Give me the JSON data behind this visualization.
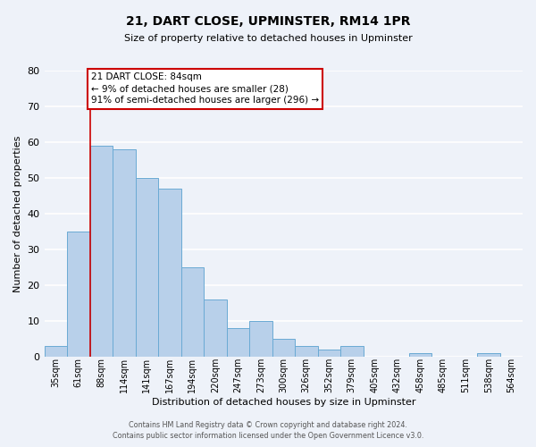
{
  "title": "21, DART CLOSE, UPMINSTER, RM14 1PR",
  "subtitle": "Size of property relative to detached houses in Upminster",
  "xlabel": "Distribution of detached houses by size in Upminster",
  "ylabel": "Number of detached properties",
  "bar_labels": [
    "35sqm",
    "61sqm",
    "88sqm",
    "114sqm",
    "141sqm",
    "167sqm",
    "194sqm",
    "220sqm",
    "247sqm",
    "273sqm",
    "300sqm",
    "326sqm",
    "352sqm",
    "379sqm",
    "405sqm",
    "432sqm",
    "458sqm",
    "485sqm",
    "511sqm",
    "538sqm",
    "564sqm"
  ],
  "bar_values": [
    3,
    35,
    59,
    58,
    50,
    47,
    25,
    16,
    8,
    10,
    5,
    3,
    2,
    3,
    0,
    0,
    1,
    0,
    0,
    1,
    0
  ],
  "bar_color": "#b8d0ea",
  "bar_edge_color": "#6aaad4",
  "bar_edge_width": 0.7,
  "ylim": [
    0,
    80
  ],
  "yticks": [
    0,
    10,
    20,
    30,
    40,
    50,
    60,
    70,
    80
  ],
  "red_line_index": 2,
  "red_line_color": "#cc0000",
  "annotation_title": "21 DART CLOSE: 84sqm",
  "annotation_line1": "← 9% of detached houses are smaller (28)",
  "annotation_line2": "91% of semi-detached houses are larger (296) →",
  "annotation_box_color": "#ffffff",
  "annotation_box_edge": "#cc0000",
  "bg_color": "#eef2f9",
  "grid_color": "#ffffff",
  "footer_line1": "Contains HM Land Registry data © Crown copyright and database right 2024.",
  "footer_line2": "Contains public sector information licensed under the Open Government Licence v3.0."
}
